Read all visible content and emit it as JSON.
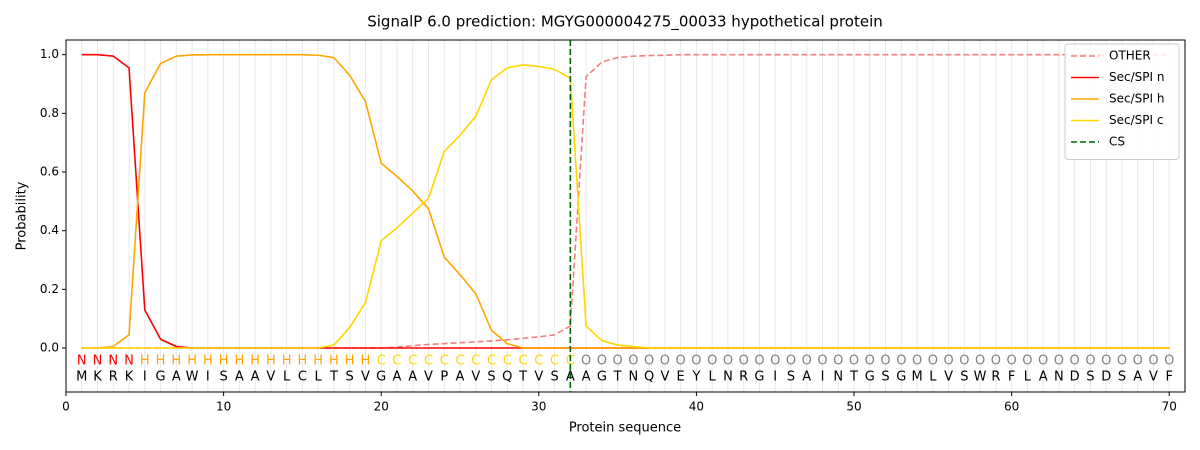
{
  "chart_data": {
    "type": "line",
    "title": "SignalP 6.0 prediction: MGYG000004275_00033 hypothetical protein",
    "xlabel": "Protein sequence",
    "ylabel": "Probability",
    "x": [
      1,
      2,
      3,
      4,
      5,
      6,
      7,
      8,
      9,
      10,
      11,
      12,
      13,
      14,
      15,
      16,
      17,
      18,
      19,
      20,
      21,
      22,
      23,
      24,
      25,
      26,
      27,
      28,
      29,
      30,
      31,
      32,
      33,
      34,
      35,
      36,
      37,
      38,
      39,
      40,
      41,
      42,
      43,
      44,
      45,
      46,
      47,
      48,
      49,
      50,
      51,
      52,
      53,
      54,
      55,
      56,
      57,
      58,
      59,
      60,
      61,
      62,
      63,
      64,
      65,
      66,
      67,
      68,
      69,
      70
    ],
    "residues": [
      "M",
      "K",
      "R",
      "K",
      "I",
      "G",
      "A",
      "W",
      "I",
      "S",
      "A",
      "A",
      "V",
      "L",
      "C",
      "L",
      "T",
      "S",
      "V",
      "G",
      "A",
      "A",
      "V",
      "P",
      "A",
      "V",
      "S",
      "Q",
      "T",
      "V",
      "S",
      "A",
      "A",
      "G",
      "T",
      "N",
      "Q",
      "V",
      "E",
      "Y",
      "L",
      "N",
      "R",
      "G",
      "I",
      "S",
      "A",
      "I",
      "N",
      "T",
      "G",
      "S",
      "G",
      "M",
      "L",
      "V",
      "S",
      "W",
      "R",
      "F",
      "L",
      "A",
      "N",
      "D",
      "S",
      "D",
      "S",
      "A",
      "V",
      "F"
    ],
    "regions": [
      "N",
      "N",
      "N",
      "N",
      "H",
      "H",
      "H",
      "H",
      "H",
      "H",
      "H",
      "H",
      "H",
      "H",
      "H",
      "H",
      "H",
      "H",
      "H",
      "C",
      "C",
      "C",
      "C",
      "C",
      "C",
      "C",
      "C",
      "C",
      "C",
      "C",
      "C",
      "C",
      "O",
      "O",
      "O",
      "O",
      "O",
      "O",
      "O",
      "O",
      "O",
      "O",
      "O",
      "O",
      "O",
      "O",
      "O",
      "O",
      "O",
      "O",
      "O",
      "O",
      "O",
      "O",
      "O",
      "O",
      "O",
      "O",
      "O",
      "O",
      "O",
      "O",
      "O",
      "O",
      "O",
      "O",
      "O",
      "O",
      "O",
      "O"
    ],
    "region_colors": {
      "N": "#ff0000",
      "H": "#ffa500",
      "C": "#ffd700",
      "O": "#808080"
    },
    "series": [
      {
        "name": "OTHER",
        "color": "#f08080",
        "dashed": true,
        "values": [
          0,
          0,
          0,
          0,
          0,
          0,
          0,
          0,
          0,
          0,
          0,
          0,
          0,
          0,
          0,
          0,
          0,
          0,
          0,
          0,
          0.003,
          0.008,
          0.012,
          0.015,
          0.018,
          0.021,
          0.024,
          0.028,
          0.033,
          0.038,
          0.045,
          0.075,
          0.925,
          0.975,
          0.99,
          0.995,
          0.997,
          0.998,
          1,
          1,
          1,
          1,
          1,
          1,
          1,
          1,
          1,
          1,
          1,
          1,
          1,
          1,
          1,
          1,
          1,
          1,
          1,
          1,
          1,
          1,
          1,
          1,
          1,
          1,
          1,
          1,
          1,
          1,
          1,
          1
        ]
      },
      {
        "name": "Sec/SPI n",
        "color": "#ff0000",
        "dashed": false,
        "values": [
          1,
          1,
          0.995,
          0.955,
          0.13,
          0.03,
          0.005,
          0,
          0,
          0,
          0,
          0,
          0,
          0,
          0,
          0,
          0,
          0,
          0,
          0,
          0,
          0,
          0,
          0,
          0,
          0,
          0,
          0,
          0,
          0,
          0,
          0,
          0,
          0,
          0,
          0,
          0,
          0,
          0,
          0,
          0,
          0,
          0,
          0,
          0,
          0,
          0,
          0,
          0,
          0,
          0,
          0,
          0,
          0,
          0,
          0,
          0,
          0,
          0,
          0,
          0,
          0,
          0,
          0,
          0,
          0,
          0,
          0,
          0,
          0
        ]
      },
      {
        "name": "Sec/SPI h",
        "color": "#ffa500",
        "dashed": false,
        "values": [
          0,
          0,
          0.005,
          0.045,
          0.87,
          0.97,
          0.995,
          0.999,
          1,
          1,
          1,
          1,
          1,
          1,
          1,
          0.998,
          0.99,
          0.93,
          0.84,
          0.63,
          0.585,
          0.535,
          0.475,
          0.31,
          0.25,
          0.185,
          0.06,
          0.015,
          0,
          0,
          0,
          0,
          0,
          0,
          0,
          0,
          0,
          0,
          0,
          0,
          0,
          0,
          0,
          0,
          0,
          0,
          0,
          0,
          0,
          0,
          0,
          0,
          0,
          0,
          0,
          0,
          0,
          0,
          0,
          0,
          0,
          0,
          0,
          0,
          0,
          0,
          0,
          0,
          0,
          0
        ]
      },
      {
        "name": "Sec/SPI c",
        "color": "#ffd700",
        "dashed": false,
        "values": [
          0,
          0,
          0,
          0,
          0,
          0,
          0,
          0,
          0,
          0,
          0,
          0,
          0,
          0,
          0,
          0,
          0.01,
          0.07,
          0.155,
          0.365,
          0.41,
          0.46,
          0.51,
          0.67,
          0.725,
          0.79,
          0.915,
          0.955,
          0.965,
          0.96,
          0.95,
          0.92,
          0.075,
          0.025,
          0.01,
          0.005,
          0,
          0,
          0,
          0,
          0,
          0,
          0,
          0,
          0,
          0,
          0,
          0,
          0,
          0,
          0,
          0,
          0,
          0,
          0,
          0,
          0,
          0,
          0,
          0,
          0,
          0,
          0,
          0,
          0,
          0,
          0,
          0,
          0,
          0
        ]
      }
    ],
    "cs": {
      "name": "CS",
      "x": 32,
      "color": "#006400"
    },
    "xlim": [
      0,
      71
    ],
    "ylim": [
      -0.15,
      1.05
    ],
    "xticks": [
      0,
      10,
      20,
      30,
      40,
      50,
      60,
      70
    ],
    "yticks": [
      {
        "value": 0,
        "label": "0.0"
      },
      {
        "value": 0.2,
        "label": "0.2"
      },
      {
        "value": 0.4,
        "label": "0.4"
      },
      {
        "value": 0.6,
        "label": "0.6"
      },
      {
        "value": 0.8,
        "label": "0.8"
      },
      {
        "value": 1,
        "label": "1.0"
      }
    ],
    "grid": true,
    "legend": "upper right"
  }
}
